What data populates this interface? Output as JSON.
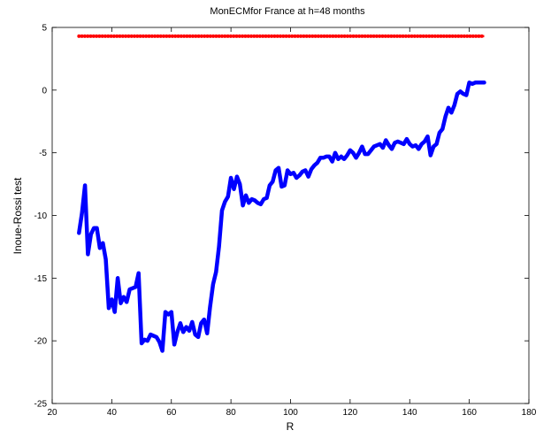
{
  "chart_data": {
    "type": "line",
    "title": "MonECMfor France at h=48 months",
    "xlabel": "R",
    "ylabel": "Inoue-Rossi test",
    "xlim": [
      20,
      180
    ],
    "ylim": [
      -25,
      5
    ],
    "xticks": [
      20,
      40,
      60,
      80,
      100,
      120,
      140,
      160,
      180
    ],
    "yticks": [
      -25,
      -20,
      -15,
      -10,
      -5,
      0,
      5
    ],
    "grid": false,
    "series": [
      {
        "color": "#0000ff",
        "style": "solid-thick",
        "x": [
          29,
          30,
          31,
          32,
          33,
          34,
          35,
          36,
          37,
          38,
          39,
          40,
          41,
          42,
          43,
          44,
          45,
          46,
          47,
          48,
          49,
          50,
          51,
          52,
          53,
          54,
          55,
          56,
          57,
          58,
          59,
          60,
          61,
          62,
          63,
          64,
          65,
          66,
          67,
          68,
          69,
          70,
          71,
          72,
          73,
          74,
          75,
          76,
          77,
          78,
          79,
          80,
          81,
          82,
          83,
          84,
          85,
          86,
          87,
          88,
          89,
          90,
          91,
          92,
          93,
          94,
          95,
          96,
          97,
          98,
          99,
          100,
          101,
          102,
          103,
          104,
          105,
          106,
          107,
          108,
          109,
          110,
          111,
          112,
          113,
          114,
          115,
          116,
          117,
          118,
          119,
          120,
          121,
          122,
          123,
          124,
          125,
          126,
          127,
          128,
          129,
          130,
          131,
          132,
          133,
          134,
          135,
          136,
          137,
          138,
          139,
          140,
          141,
          142,
          143,
          144,
          145,
          146,
          147,
          148,
          149,
          150,
          151,
          152,
          153,
          154,
          155,
          156,
          157,
          158,
          159,
          160,
          161,
          162,
          163,
          164,
          165
        ],
        "values": [
          -11.4,
          -9.8,
          -7.6,
          -13.1,
          -11.5,
          -11.0,
          -11.0,
          -12.6,
          -12.2,
          -13.5,
          -17.4,
          -16.7,
          -17.7,
          -15.0,
          -17.0,
          -16.5,
          -16.9,
          -15.9,
          -15.8,
          -15.7,
          -14.6,
          -20.2,
          -19.9,
          -20.0,
          -19.5,
          -19.6,
          -19.7,
          -20.1,
          -20.8,
          -17.7,
          -17.9,
          -17.7,
          -20.3,
          -19.3,
          -18.6,
          -19.3,
          -18.9,
          -19.2,
          -18.5,
          -19.5,
          -19.7,
          -18.6,
          -18.3,
          -19.4,
          -17.3,
          -15.5,
          -14.5,
          -12.5,
          -9.6,
          -8.9,
          -8.5,
          -7.0,
          -7.9,
          -6.9,
          -7.5,
          -9.2,
          -8.4,
          -9.0,
          -8.7,
          -8.8,
          -9.0,
          -9.1,
          -8.7,
          -8.6,
          -7.6,
          -7.3,
          -6.4,
          -6.2,
          -7.7,
          -7.6,
          -6.4,
          -6.7,
          -6.6,
          -7.0,
          -6.8,
          -6.5,
          -6.4,
          -6.9,
          -6.3,
          -6.0,
          -5.8,
          -5.4,
          -5.4,
          -5.3,
          -5.3,
          -5.7,
          -5.0,
          -5.5,
          -5.3,
          -5.5,
          -5.2,
          -4.8,
          -5.0,
          -5.4,
          -5.0,
          -4.5,
          -5.1,
          -5.1,
          -4.8,
          -4.5,
          -4.4,
          -4.3,
          -4.6,
          -4.0,
          -4.4,
          -4.7,
          -4.2,
          -4.1,
          -4.2,
          -4.3,
          -3.9,
          -4.3,
          -4.5,
          -4.4,
          -4.7,
          -4.3,
          -4.1,
          -3.7,
          -5.2,
          -4.5,
          -4.3,
          -3.4,
          -3.1,
          -2.1,
          -1.4,
          -1.8,
          -1.2,
          -0.3,
          -0.1,
          -0.3,
          -0.4,
          0.6,
          0.5,
          0.6,
          0.6,
          0.6,
          0.6
        ]
      },
      {
        "color": "#ff0000",
        "style": "dotted-markers",
        "x": [
          29,
          165
        ],
        "values": [
          4.3,
          4.3
        ]
      }
    ]
  }
}
